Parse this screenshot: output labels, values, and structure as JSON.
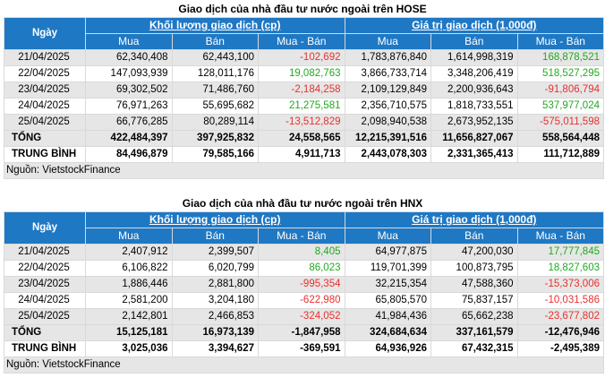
{
  "hose": {
    "title": "Giao dịch của nhà đầu tư nước ngoài trên HOSE",
    "header": {
      "day": "Ngày",
      "group1": "Khối lượng giao dịch (cp)",
      "group2": "Giá trị giao dịch (1,000đ)",
      "buy": "Mua",
      "sell": "Bán",
      "net": "Mua - Bán"
    },
    "rows": [
      {
        "day": "21/04/2025",
        "vol_buy": "62,340,408",
        "vol_sell": "62,443,100",
        "vol_net": "-102,692",
        "val_buy": "1,783,876,840",
        "val_sell": "1,614,998,319",
        "val_net": "168,878,521"
      },
      {
        "day": "22/04/2025",
        "vol_buy": "147,093,939",
        "vol_sell": "128,011,176",
        "vol_net": "19,082,763",
        "val_buy": "3,866,733,714",
        "val_sell": "3,348,206,419",
        "val_net": "518,527,295"
      },
      {
        "day": "23/04/2025",
        "vol_buy": "69,302,502",
        "vol_sell": "71,486,760",
        "vol_net": "-2,184,258",
        "val_buy": "2,109,129,849",
        "val_sell": "2,200,936,643",
        "val_net": "-91,806,794"
      },
      {
        "day": "24/04/2025",
        "vol_buy": "76,971,263",
        "vol_sell": "55,695,682",
        "vol_net": "21,275,581",
        "val_buy": "2,356,710,575",
        "val_sell": "1,818,733,551",
        "val_net": "537,977,024"
      },
      {
        "day": "25/04/2025",
        "vol_buy": "66,776,285",
        "vol_sell": "80,289,114",
        "vol_net": "-13,512,829",
        "val_buy": "2,098,940,538",
        "val_sell": "2,673,952,135",
        "val_net": "-575,011,598"
      }
    ],
    "total": {
      "label": "TỔNG",
      "vol_buy": "422,484,397",
      "vol_sell": "397,925,832",
      "vol_net": "24,558,565",
      "val_buy": "12,215,391,516",
      "val_sell": "11,656,827,067",
      "val_net": "558,564,448"
    },
    "average": {
      "label": "TRUNG BÌNH",
      "vol_buy": "84,496,879",
      "vol_sell": "79,585,166",
      "vol_net": "4,911,713",
      "val_buy": "2,443,078,303",
      "val_sell": "2,331,365,413",
      "val_net": "111,712,889"
    },
    "source": "Nguồn: VietstockFinance"
  },
  "hnx": {
    "title": "Giao dịch của nhà đầu tư nước ngoài trên HNX",
    "header": {
      "day": "Ngày",
      "group1": "Khối lượng giao dịch (cp)",
      "group2": "Giá trị giao dịch (1,000đ)",
      "buy": "Mua",
      "sell": "Bán",
      "net": "Mua - Bán"
    },
    "rows": [
      {
        "day": "21/04/2025",
        "vol_buy": "2,407,912",
        "vol_sell": "2,399,507",
        "vol_net": "8,405",
        "val_buy": "64,977,875",
        "val_sell": "47,200,030",
        "val_net": "17,777,845"
      },
      {
        "day": "22/04/2025",
        "vol_buy": "6,106,822",
        "vol_sell": "6,020,799",
        "vol_net": "86,023",
        "val_buy": "119,701,399",
        "val_sell": "100,873,795",
        "val_net": "18,827,603"
      },
      {
        "day": "23/04/2025",
        "vol_buy": "1,886,446",
        "vol_sell": "2,881,800",
        "vol_net": "-995,354",
        "val_buy": "32,215,354",
        "val_sell": "47,588,360",
        "val_net": "-15,373,006"
      },
      {
        "day": "24/04/2025",
        "vol_buy": "2,581,200",
        "vol_sell": "3,204,180",
        "vol_net": "-622,980",
        "val_buy": "65,805,570",
        "val_sell": "75,837,157",
        "val_net": "-10,031,586"
      },
      {
        "day": "25/04/2025",
        "vol_buy": "2,142,801",
        "vol_sell": "2,466,853",
        "vol_net": "-324,052",
        "val_buy": "41,984,436",
        "val_sell": "65,662,238",
        "val_net": "-23,677,802"
      }
    ],
    "total": {
      "label": "TỔNG",
      "vol_buy": "15,125,181",
      "vol_sell": "16,973,139",
      "vol_net": "-1,847,958",
      "val_buy": "324,684,634",
      "val_sell": "337,161,579",
      "val_net": "-12,476,946"
    },
    "average": {
      "label": "TRUNG BÌNH",
      "vol_buy": "3,025,036",
      "vol_sell": "3,394,627",
      "vol_net": "-369,591",
      "val_buy": "64,936,926",
      "val_sell": "67,432,315",
      "val_net": "-2,495,389"
    },
    "source": "Nguồn: VietstockFinance"
  },
  "colors": {
    "header_bg": "#1f78c4",
    "positive": "#1faa1f",
    "negative": "#e8302e",
    "alt_row": "#e6e6e6"
  }
}
